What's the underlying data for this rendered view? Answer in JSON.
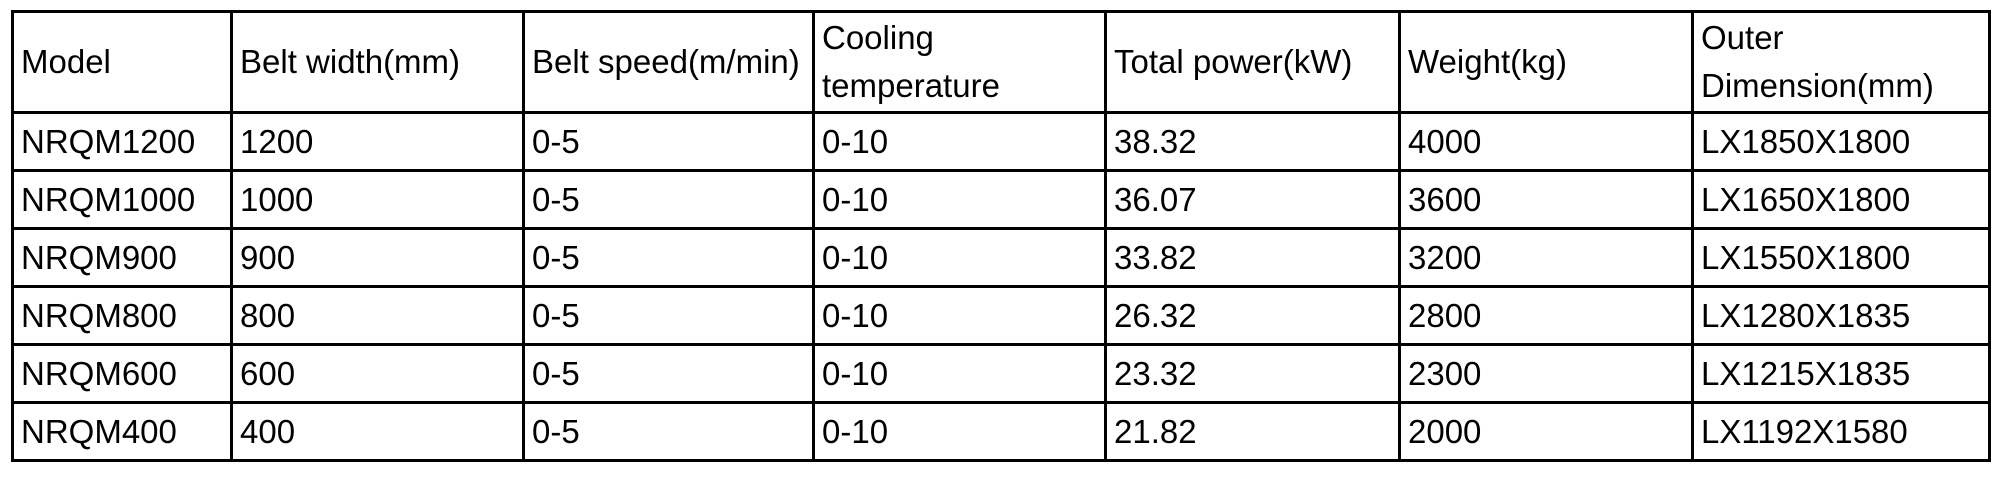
{
  "table": {
    "columns": [
      "Model",
      "Belt width(mm)",
      "Belt speed(m/min)",
      "Cooling temperature",
      "Total power(kW)",
      "Weight(kg)",
      "Outer Dimension(mm)"
    ],
    "rows": [
      [
        "NRQM1200",
        "1200",
        "0-5",
        "0-10",
        "38.32",
        "4000",
        "LX1850X1800"
      ],
      [
        "NRQM1000",
        "1000",
        "0-5",
        "0-10",
        "36.07",
        "3600",
        "LX1650X1800"
      ],
      [
        "NRQM900",
        "900",
        "0-5",
        "0-10",
        "33.82",
        "3200",
        "LX1550X1800"
      ],
      [
        "NRQM800",
        "800",
        "0-5",
        "0-10",
        "26.32",
        "2800",
        "LX1280X1835"
      ],
      [
        "NRQM600",
        "600",
        "0-5",
        "0-10",
        "23.32",
        "2300",
        "LX1215X1835"
      ],
      [
        "NRQM400",
        "400",
        "0-5",
        "0-10",
        "21.82",
        "2000",
        "LX1192X1580"
      ]
    ],
    "colors": {
      "border": "#000000",
      "text": "#000000",
      "background": "#ffffff"
    }
  }
}
